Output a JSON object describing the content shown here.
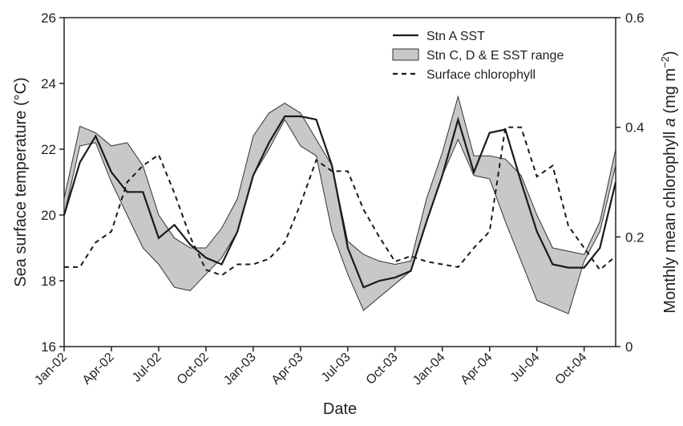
{
  "chart_data": {
    "type": "line",
    "xlabel": "Date",
    "ylabel": "Sea surface temperature (°C)",
    "y2label": [
      "Monthly mean chlorophyll ",
      "a",
      " (mg m",
      "−2",
      ")"
    ],
    "categories": [
      "Jan-02",
      null,
      null,
      "Apr-02",
      null,
      null,
      "Jul-02",
      null,
      null,
      "Oct-02",
      null,
      null,
      "Jan-03",
      null,
      null,
      "Apr-03",
      null,
      null,
      "Jul-03",
      null,
      null,
      "Oct-03",
      null,
      null,
      "Jan-04",
      null,
      null,
      "Apr-04",
      null,
      null,
      "Jul-04",
      null,
      null,
      "Oct-04",
      null,
      null
    ],
    "ylim": [
      16,
      26
    ],
    "yticks": [
      16,
      18,
      20,
      22,
      24,
      26
    ],
    "y2lim": [
      0,
      0.6
    ],
    "y2ticks": [
      0,
      0.2,
      0.4,
      0.6
    ],
    "legend": "top-right",
    "series": [
      {
        "name": "Stn A SST",
        "type": "line",
        "color": "#1a1a1a",
        "values": [
          20.0,
          21.6,
          22.4,
          21.3,
          20.7,
          20.7,
          19.3,
          19.7,
          19.1,
          18.7,
          18.5,
          19.5,
          21.2,
          22.2,
          23.0,
          23.0,
          22.9,
          21.5,
          19.0,
          17.8,
          18.0,
          18.1,
          18.3,
          19.8,
          21.2,
          22.9,
          21.3,
          22.5,
          22.6,
          21.0,
          19.5,
          18.5,
          18.4,
          18.4,
          19.0,
          21.0
        ]
      },
      {
        "name": "Stn C, D & E SST range",
        "type": "band",
        "color": "#c8c8c8",
        "lower": [
          20.0,
          22.1,
          22.2,
          21.0,
          20.0,
          19.0,
          18.5,
          17.8,
          17.7,
          18.2,
          18.7,
          19.5,
          21.2,
          22.0,
          22.9,
          22.1,
          21.8,
          19.5,
          18.2,
          17.1,
          17.5,
          17.9,
          18.3,
          19.8,
          21.2,
          22.3,
          21.2,
          21.1,
          19.8,
          18.6,
          17.4,
          17.2,
          17.0,
          18.6,
          19.5,
          21.5
        ],
        "upper": [
          20.5,
          22.7,
          22.5,
          22.1,
          22.2,
          21.5,
          20.0,
          19.3,
          19.0,
          19.0,
          19.6,
          20.5,
          22.4,
          23.1,
          23.4,
          23.1,
          22.3,
          21.5,
          19.2,
          18.8,
          18.6,
          18.5,
          18.6,
          20.5,
          21.9,
          23.6,
          21.8,
          21.8,
          21.7,
          21.2,
          20.0,
          19.0,
          18.9,
          18.8,
          19.8,
          22.0
        ]
      },
      {
        "name": "Surface chlorophyll",
        "type": "dashed",
        "axis": "y2",
        "color": "#1a1a1a",
        "values": [
          0.145,
          0.145,
          0.19,
          0.21,
          0.3,
          0.33,
          0.35,
          0.28,
          0.2,
          0.14,
          0.13,
          0.15,
          0.15,
          0.16,
          0.19,
          0.26,
          0.34,
          0.32,
          0.32,
          0.25,
          0.2,
          0.155,
          0.165,
          0.155,
          0.15,
          0.145,
          0.18,
          0.21,
          0.4,
          0.4,
          0.31,
          0.33,
          0.22,
          0.18,
          0.14,
          0.165
        ]
      }
    ]
  }
}
